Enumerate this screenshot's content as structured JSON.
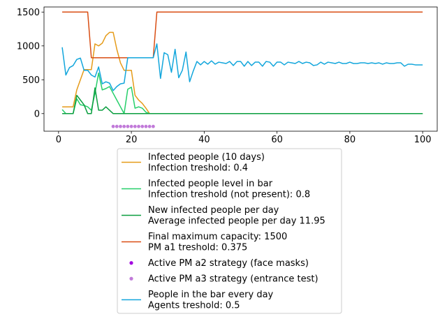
{
  "chart_data": {
    "type": "line",
    "xlim": [
      -4,
      104
    ],
    "ylim": [
      -260,
      1575
    ],
    "xticks": [
      0,
      20,
      40,
      60,
      80,
      100
    ],
    "yticks": [
      0,
      500,
      1000,
      1500
    ],
    "grid": false,
    "legend_placement": "below",
    "series": [
      {
        "name": "Infected people (10 days)\nInfection treshold: 0.4",
        "color": "#e59b19",
        "kind": "line",
        "x": [
          1,
          2,
          3,
          4,
          5,
          6,
          7,
          8,
          9,
          10,
          11,
          12,
          13,
          14,
          15,
          16,
          17,
          18,
          19,
          20,
          21,
          22,
          23,
          24,
          25,
          26,
          27,
          28,
          29,
          30,
          35,
          40,
          45,
          50,
          55,
          60,
          65,
          70,
          75,
          80,
          85,
          90,
          95,
          100
        ],
        "y": [
          100,
          100,
          100,
          100,
          350,
          500,
          650,
          650,
          650,
          1030,
          1000,
          1040,
          1150,
          1200,
          1200,
          950,
          750,
          640,
          640,
          640,
          270,
          200,
          150,
          80,
          0,
          0,
          0,
          0,
          0,
          0,
          0,
          0,
          0,
          0,
          0,
          0,
          0,
          0,
          0,
          0,
          0,
          0,
          0,
          0
        ]
      },
      {
        "name": "Infected people level in bar\nInfection treshold (not present): 0.8",
        "color": "#26cf6a",
        "kind": "line",
        "x": [
          1,
          2,
          3,
          4,
          5,
          6,
          7,
          8,
          9,
          10,
          11,
          12,
          13,
          14,
          15,
          16,
          17,
          18,
          19,
          20,
          21,
          22,
          23,
          24,
          25,
          26,
          27,
          30,
          40,
          50,
          60,
          70,
          80,
          90,
          100
        ],
        "y": [
          60,
          0,
          0,
          0,
          220,
          130,
          120,
          100,
          50,
          300,
          600,
          350,
          370,
          400,
          300,
          200,
          100,
          0,
          360,
          390,
          80,
          100,
          80,
          20,
          0,
          0,
          0,
          0,
          0,
          0,
          0,
          0,
          0,
          0,
          0
        ]
      },
      {
        "name": "New infected people per day\nAverage infected people per day 11.95",
        "color": "#0a9e3f",
        "kind": "line",
        "x": [
          1,
          2,
          3,
          4,
          5,
          6,
          7,
          8,
          9,
          10,
          11,
          12,
          13,
          14,
          15,
          16,
          17,
          18,
          19,
          20,
          21,
          25,
          30,
          40,
          50,
          60,
          70,
          80,
          90,
          100
        ],
        "y": [
          0,
          0,
          0,
          0,
          270,
          200,
          130,
          0,
          0,
          380,
          50,
          50,
          100,
          50,
          0,
          0,
          0,
          0,
          0,
          0,
          0,
          0,
          0,
          0,
          0,
          0,
          0,
          0,
          0,
          0
        ]
      },
      {
        "name": "Final maximum capacity: 1500\nPM a1 treshold: 0.375",
        "color": "#d94e14",
        "kind": "line",
        "x": [
          1,
          8,
          9,
          26,
          27,
          100
        ],
        "y": [
          1500,
          1500,
          825,
          825,
          1500,
          1500
        ]
      },
      {
        "name": "Active PM a2 strategy (face masks)",
        "color": "#a306e0",
        "kind": "scatter",
        "x": [],
        "y": []
      },
      {
        "name": "Active PM a3 strategy (entrance test)",
        "color": "#c17ad9",
        "kind": "scatter",
        "x": [
          15,
          16,
          17,
          18,
          19,
          20,
          21,
          22,
          23,
          24,
          25,
          26
        ],
        "y": [
          -190,
          -190,
          -190,
          -190,
          -190,
          -190,
          -190,
          -190,
          -190,
          -190,
          -190,
          -190
        ]
      },
      {
        "name": "People in the bar every day\nAgents treshold: 0.5",
        "color": "#12a6dc",
        "kind": "line",
        "x": [
          1,
          2,
          3,
          4,
          5,
          6,
          7,
          8,
          9,
          10,
          11,
          12,
          13,
          14,
          15,
          16,
          17,
          18,
          19,
          20,
          21,
          22,
          23,
          24,
          25,
          26,
          27,
          28,
          29,
          30,
          31,
          32,
          33,
          34,
          35,
          36,
          37,
          38,
          39,
          40,
          41,
          42,
          43,
          44,
          45,
          46,
          47,
          48,
          49,
          50,
          51,
          52,
          53,
          54,
          55,
          56,
          57,
          58,
          59,
          60,
          61,
          62,
          63,
          64,
          65,
          66,
          67,
          68,
          69,
          70,
          71,
          72,
          73,
          74,
          75,
          76,
          77,
          78,
          79,
          80,
          81,
          82,
          83,
          84,
          85,
          86,
          87,
          88,
          89,
          90,
          91,
          92,
          93,
          94,
          95,
          96,
          97,
          98,
          99,
          100
        ],
        "y": [
          980,
          570,
          680,
          710,
          800,
          820,
          640,
          640,
          570,
          540,
          690,
          440,
          470,
          450,
          340,
          400,
          440,
          450,
          825,
          825,
          825,
          825,
          825,
          825,
          825,
          825,
          1030,
          520,
          900,
          870,
          610,
          950,
          530,
          640,
          910,
          470,
          630,
          770,
          720,
          770,
          730,
          780,
          730,
          760,
          750,
          740,
          770,
          710,
          770,
          770,
          700,
          770,
          710,
          760,
          760,
          700,
          770,
          760,
          700,
          760,
          760,
          720,
          760,
          750,
          740,
          770,
          740,
          760,
          750,
          710,
          720,
          760,
          730,
          760,
          750,
          740,
          760,
          740,
          740,
          760,
          740,
          740,
          750,
          750,
          740,
          750,
          740,
          750,
          730,
          750,
          740,
          740,
          750,
          750,
          700,
          730,
          730,
          720,
          720,
          720
        ]
      }
    ]
  }
}
